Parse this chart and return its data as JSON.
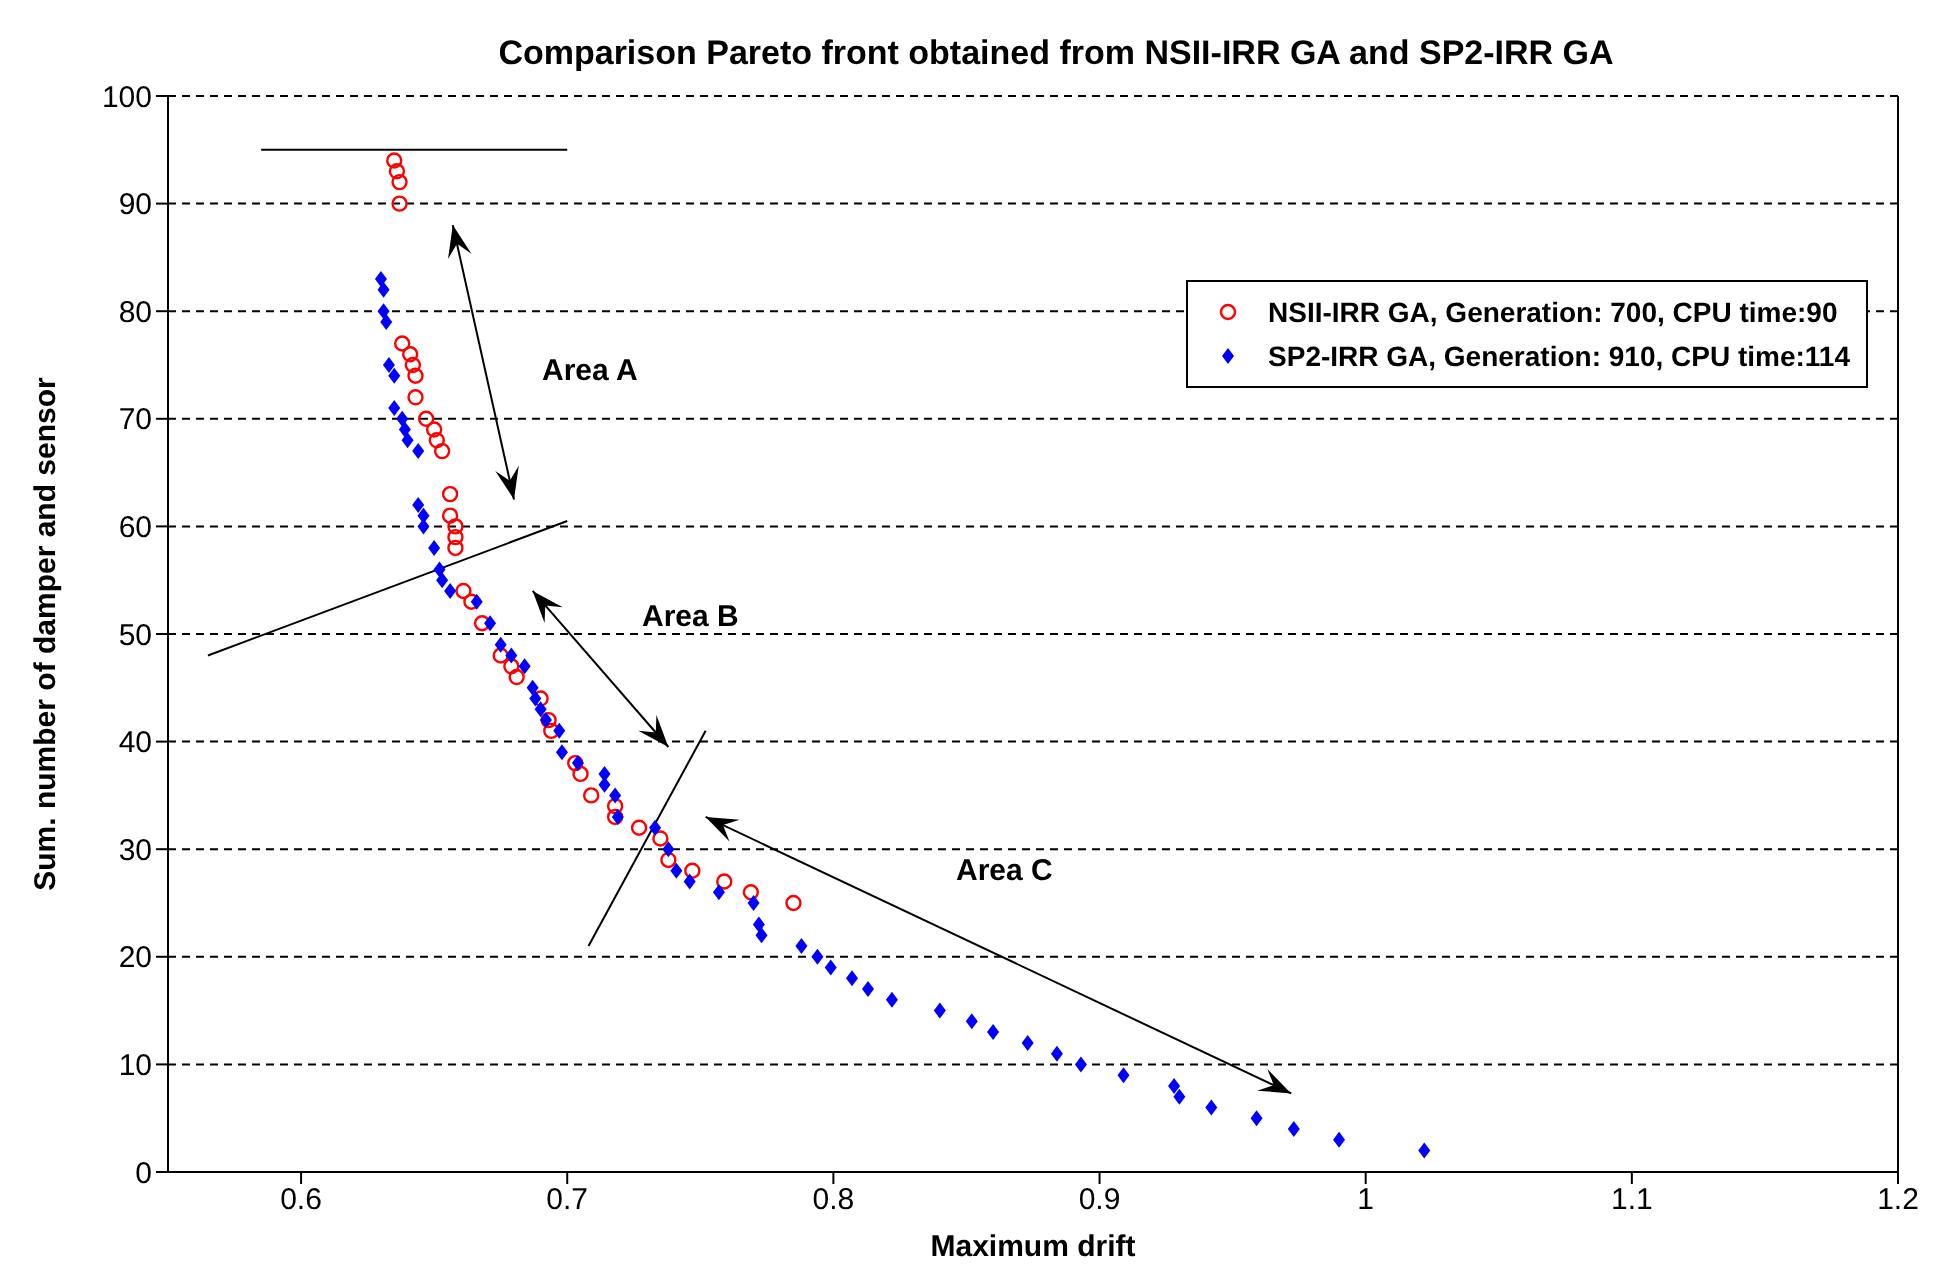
{
  "chart_data": {
    "type": "scatter",
    "title": "Comparison Pareto front obtained from NSII-IRR GA and SP2-IRR GA",
    "xlabel": "Maximum drift",
    "ylabel": "Sum. number of damper and sensor",
    "xlim": [
      0.55,
      1.2
    ],
    "xticks": [
      0.6,
      0.7,
      0.8,
      0.9,
      1,
      1.1,
      1.2
    ],
    "ylim": [
      0,
      100
    ],
    "yticks": [
      0,
      10,
      20,
      30,
      40,
      50,
      60,
      70,
      80,
      90,
      100
    ],
    "grid": "y",
    "legend": "top right",
    "series": [
      {
        "name": "NSII-IRR GA, Generation: 700, CPU time:90",
        "color": "#ff0000",
        "marker": "circle",
        "x": [
          0.635,
          0.636,
          0.637,
          0.637,
          0.638,
          0.641,
          0.642,
          0.643,
          0.643,
          0.647,
          0.65,
          0.651,
          0.653,
          0.656,
          0.656,
          0.658,
          0.658,
          0.658,
          0.661,
          0.664,
          0.668,
          0.675,
          0.679,
          0.681,
          0.69,
          0.693,
          0.694,
          0.703,
          0.705,
          0.709,
          0.718,
          0.718,
          0.727,
          0.735,
          0.738,
          0.747,
          0.759,
          0.769,
          0.785
        ],
        "values": [
          94,
          93,
          92,
          90,
          77,
          76,
          75,
          74,
          72,
          70,
          69,
          68,
          67,
          63,
          61,
          60,
          59,
          58,
          54,
          53,
          51,
          48,
          47,
          46,
          44,
          42,
          41,
          38,
          37,
          35,
          34,
          33,
          32,
          31,
          29,
          28,
          27,
          26,
          25
        ]
      },
      {
        "name": "SP2-IRR GA, Generation: 910, CPU time:114",
        "color": "#0000ff",
        "marker": "diamond",
        "x": [
          0.63,
          0.631,
          0.631,
          0.632,
          0.633,
          0.635,
          0.635,
          0.638,
          0.639,
          0.64,
          0.644,
          0.644,
          0.646,
          0.646,
          0.65,
          0.652,
          0.653,
          0.656,
          0.666,
          0.671,
          0.675,
          0.679,
          0.684,
          0.687,
          0.688,
          0.69,
          0.692,
          0.697,
          0.698,
          0.704,
          0.714,
          0.714,
          0.718,
          0.719,
          0.733,
          0.738,
          0.741,
          0.746,
          0.757,
          0.77,
          0.772,
          0.773,
          0.788,
          0.794,
          0.799,
          0.807,
          0.813,
          0.822,
          0.84,
          0.852,
          0.86,
          0.873,
          0.884,
          0.893,
          0.909,
          0.928,
          0.93,
          0.942,
          0.959,
          0.973,
          0.99,
          1.022
        ],
        "values": [
          83,
          82,
          80,
          79,
          75,
          74,
          71,
          70,
          69,
          68,
          67,
          62,
          61,
          60,
          58,
          56,
          55,
          54,
          53,
          51,
          49,
          48,
          47,
          45,
          44,
          43,
          42,
          41,
          39,
          38,
          37,
          36,
          35,
          33,
          32,
          30,
          28,
          27,
          26,
          25,
          23,
          22,
          21,
          20,
          19,
          18,
          17,
          16,
          15,
          14,
          13,
          12,
          11,
          10,
          9,
          8,
          7,
          6,
          5,
          4,
          3,
          2
        ]
      }
    ],
    "annotations": [
      "Area A",
      "Area B",
      "Area C"
    ]
  }
}
